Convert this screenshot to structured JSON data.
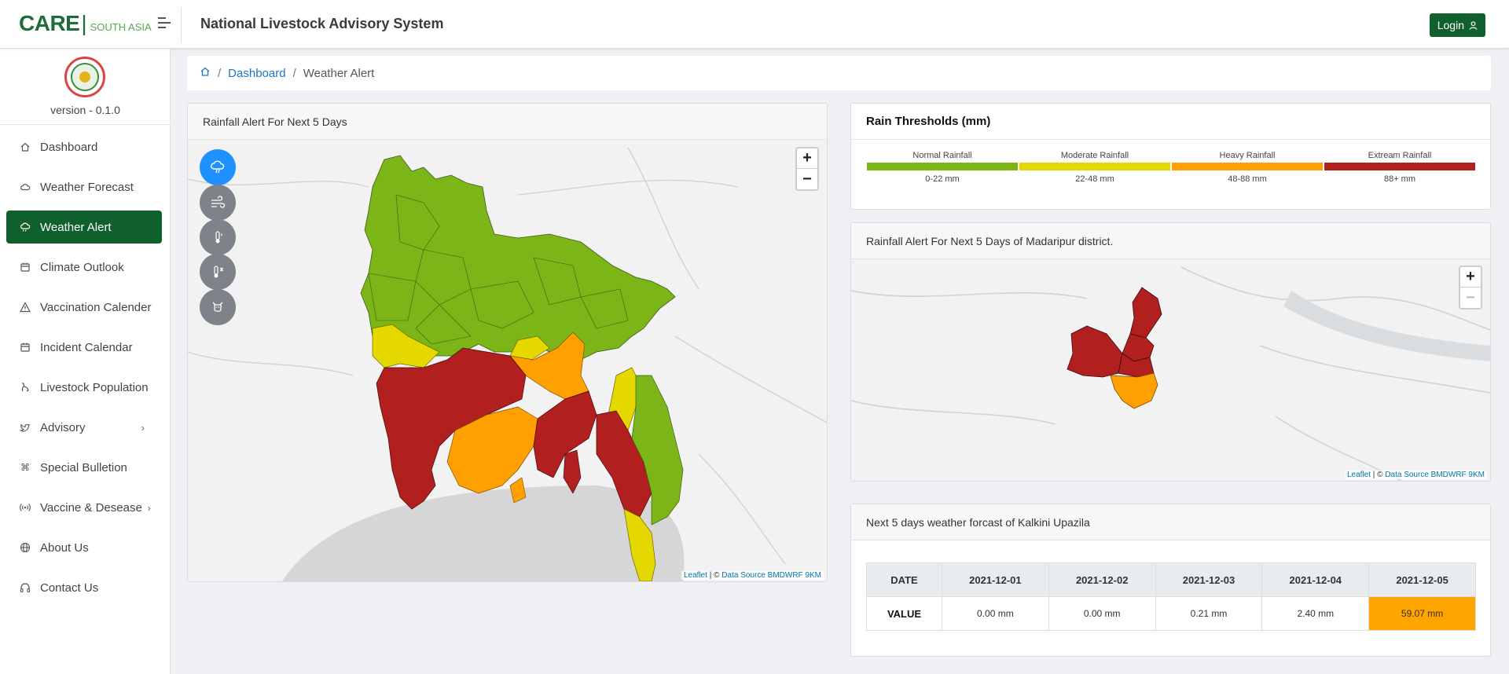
{
  "header": {
    "brand_main": "CARE",
    "brand_bar": "|",
    "brand_sub": "SOUTH ASIA",
    "app_title": "National Livestock Advisory System",
    "login_label": "Login"
  },
  "sidebar": {
    "version": "version - 0.1.0",
    "items": [
      {
        "label": "Dashboard",
        "icon": "home-icon"
      },
      {
        "label": "Weather Forecast",
        "icon": "cloud-sun-icon"
      },
      {
        "label": "Weather Alert",
        "icon": "cloud-rain-icon",
        "active": true
      },
      {
        "label": "Climate Outlook",
        "icon": "calendar-icon"
      },
      {
        "label": "Vaccination Calender",
        "icon": "warning-icon"
      },
      {
        "label": "Incident Calendar",
        "icon": "calendar-icon"
      },
      {
        "label": "Livestock Population",
        "icon": "paw-icon"
      },
      {
        "label": "Advisory",
        "icon": "twitter-icon",
        "has_submenu": true
      },
      {
        "label": "Special Bulletion",
        "icon": "command-icon"
      },
      {
        "label": "Vaccine & Desease",
        "icon": "broadcast-icon",
        "has_submenu": true
      },
      {
        "label": "About Us",
        "icon": "globe-icon"
      },
      {
        "label": "Contact Us",
        "icon": "headphones-icon"
      }
    ]
  },
  "breadcrumb": {
    "sep": "/",
    "dashboard": "Dashboard",
    "current": "Weather Alert"
  },
  "main_map": {
    "title": "Rainfall Alert For Next 5 Days",
    "zoom_in": "+",
    "zoom_out": "−",
    "attrib_leaflet": "Leaflet",
    "attrib_mid": " | © ",
    "attrib_source": "Data Source BMDWRF 9KM",
    "layers": [
      "rain-cloud-icon",
      "wind-icon",
      "humidity-icon",
      "temperature-icon",
      "livestock-icon"
    ]
  },
  "thresholds": {
    "title": "Rain Thresholds (mm)",
    "levels": [
      {
        "label": "Normal Rainfall",
        "range": "0-22 mm",
        "color": "#7cb518"
      },
      {
        "label": "Moderate Rainfall",
        "range": "22-48 mm",
        "color": "#e5d800"
      },
      {
        "label": "Heavy Rainfall",
        "range": "48-88 mm",
        "color": "#ff9f00"
      },
      {
        "label": "Extream Rainfall",
        "range": "88+ mm",
        "color": "#b21f1f"
      }
    ]
  },
  "district_map": {
    "title": "Rainfall Alert For Next 5 Days of Madaripur district.",
    "zoom_in": "+",
    "zoom_out": "−"
  },
  "forecast": {
    "title": "Next 5 days weather forcast of Kalkini Upazila",
    "date_label": "DATE",
    "value_label": "VALUE",
    "dates": [
      "2021-12-01",
      "2021-12-02",
      "2021-12-03",
      "2021-12-04",
      "2021-12-05"
    ],
    "values": [
      "0.00 mm",
      "0.00 mm",
      "0.21 mm",
      "2.40 mm",
      "59.07 mm"
    ],
    "highlight_color": "#ffa500"
  }
}
